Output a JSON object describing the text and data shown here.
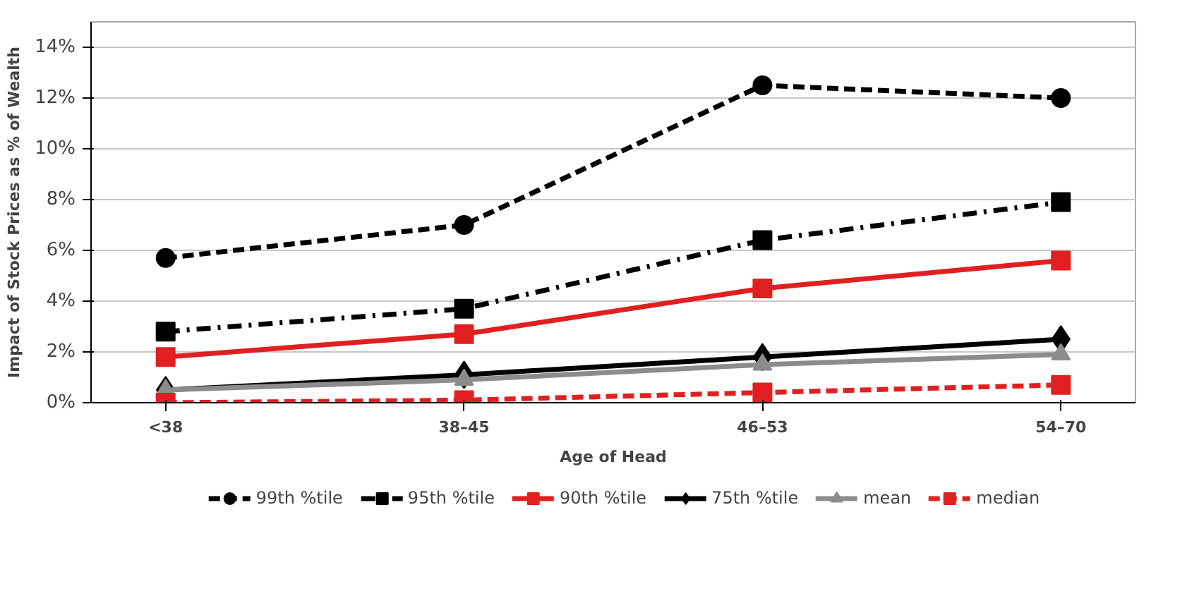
{
  "chart_data": {
    "type": "line",
    "xlabel": "Age of Head",
    "ylabel": "Impact of Stock Prices as % of Wealth",
    "categories": [
      "<38",
      "38–45",
      "46–53",
      "54–70"
    ],
    "ylim": [
      0,
      15
    ],
    "yticks": [
      {
        "value": 0,
        "label": "0%"
      },
      {
        "value": 2,
        "label": "2%"
      },
      {
        "value": 4,
        "label": "4%"
      },
      {
        "value": 6,
        "label": "6%"
      },
      {
        "value": 8,
        "label": "8%"
      },
      {
        "value": 10,
        "label": "10%"
      },
      {
        "value": 12,
        "label": "12%"
      },
      {
        "value": 14,
        "label": "14%"
      }
    ],
    "grid": "y",
    "legend": "bottom",
    "series": [
      {
        "name": "99th %tile",
        "color": "#000000",
        "marker": "circle",
        "line_style": "dashed",
        "values": [
          5.7,
          7.0,
          12.5,
          12.0
        ]
      },
      {
        "name": "95th %tile",
        "color": "#000000",
        "marker": "square",
        "line_style": "dashdot",
        "values": [
          2.8,
          3.7,
          6.4,
          7.9
        ]
      },
      {
        "name": "90th %tile",
        "color": "#e02020",
        "marker": "square",
        "line_style": "solid",
        "values": [
          1.8,
          2.7,
          4.5,
          5.6
        ]
      },
      {
        "name": "75th %tile",
        "color": "#000000",
        "marker": "diamond",
        "line_style": "solid",
        "values": [
          0.5,
          1.1,
          1.8,
          2.5
        ]
      },
      {
        "name": "mean",
        "color": "#8c8c8c",
        "marker": "triangle",
        "line_style": "solid",
        "values": [
          0.5,
          0.9,
          1.5,
          1.9
        ]
      },
      {
        "name": "median",
        "color": "#e02020",
        "marker": "square",
        "line_style": "dashed",
        "values": [
          0.0,
          0.1,
          0.4,
          0.7
        ]
      }
    ]
  }
}
